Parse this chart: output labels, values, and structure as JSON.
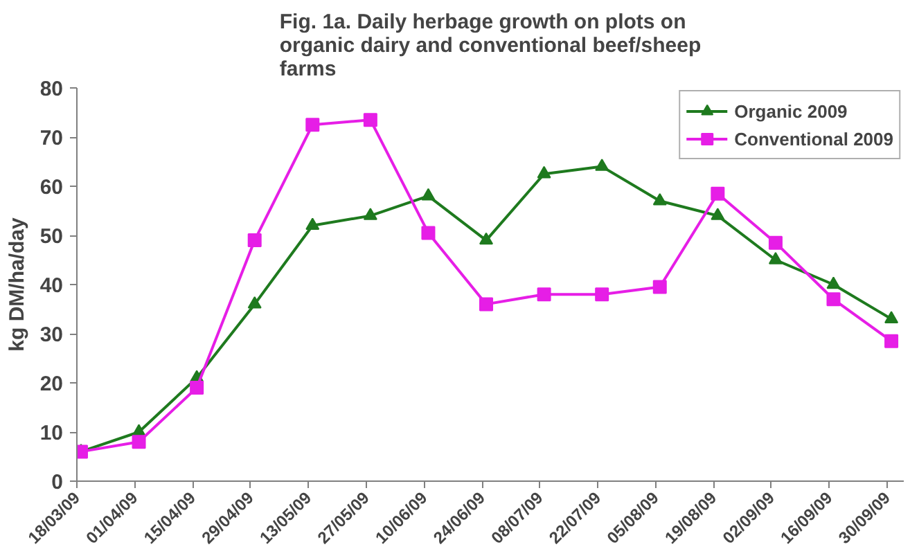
{
  "chart_data": {
    "type": "line",
    "title": "Fig. 1a. Daily herbage growth on plots on\norganic dairy and conventional beef/sheep\nfarms",
    "ylabel": "kg DM/ha/day",
    "x": [
      "2009-03-19",
      "2009-04-02",
      "2009-04-16",
      "2009-04-30",
      "2009-05-14",
      "2009-05-28",
      "2009-06-11",
      "2009-06-25",
      "2009-07-09",
      "2009-07-23",
      "2009-08-06",
      "2009-08-20",
      "2009-09-03",
      "2009-09-17",
      "2009-10-01"
    ],
    "series": [
      {
        "name": "Organic 2009",
        "color": "#1e7a1e",
        "marker": "triangle",
        "values": [
          6,
          10,
          21,
          36,
          52,
          54,
          58,
          49,
          62.5,
          64,
          57,
          54,
          45,
          40,
          33
        ]
      },
      {
        "name": "Conventional 2009",
        "color": "#e61ee6",
        "marker": "square",
        "values": [
          6,
          8,
          19,
          49,
          72.5,
          73.5,
          50.5,
          36,
          38,
          38,
          39.5,
          58.5,
          48.5,
          37,
          28.5
        ]
      }
    ],
    "xlim": [
      "2009-03-18",
      "2009-10-04"
    ],
    "xticks": [
      {
        "value": "2009-03-18",
        "label": "18/03/09"
      },
      {
        "value": "2009-04-01",
        "label": "01/04/09"
      },
      {
        "value": "2009-04-15",
        "label": "15/04/09"
      },
      {
        "value": "2009-04-29",
        "label": "29/04/09"
      },
      {
        "value": "2009-05-13",
        "label": "13/05/09"
      },
      {
        "value": "2009-05-27",
        "label": "27/05/09"
      },
      {
        "value": "2009-06-10",
        "label": "10/06/09"
      },
      {
        "value": "2009-06-24",
        "label": "24/06/09"
      },
      {
        "value": "2009-07-08",
        "label": "08/07/09"
      },
      {
        "value": "2009-07-22",
        "label": "22/07/09"
      },
      {
        "value": "2009-08-05",
        "label": "05/08/09"
      },
      {
        "value": "2009-08-19",
        "label": "19/08/09"
      },
      {
        "value": "2009-09-02",
        "label": "02/09/09"
      },
      {
        "value": "2009-09-16",
        "label": "16/09/09"
      },
      {
        "value": "2009-09-30",
        "label": "30/09/09"
      }
    ],
    "ylim": [
      0,
      80
    ],
    "yticks": [
      0,
      10,
      20,
      30,
      40,
      50,
      60,
      70,
      80
    ],
    "grid": false,
    "legend": "top right",
    "line_style": "solid"
  }
}
